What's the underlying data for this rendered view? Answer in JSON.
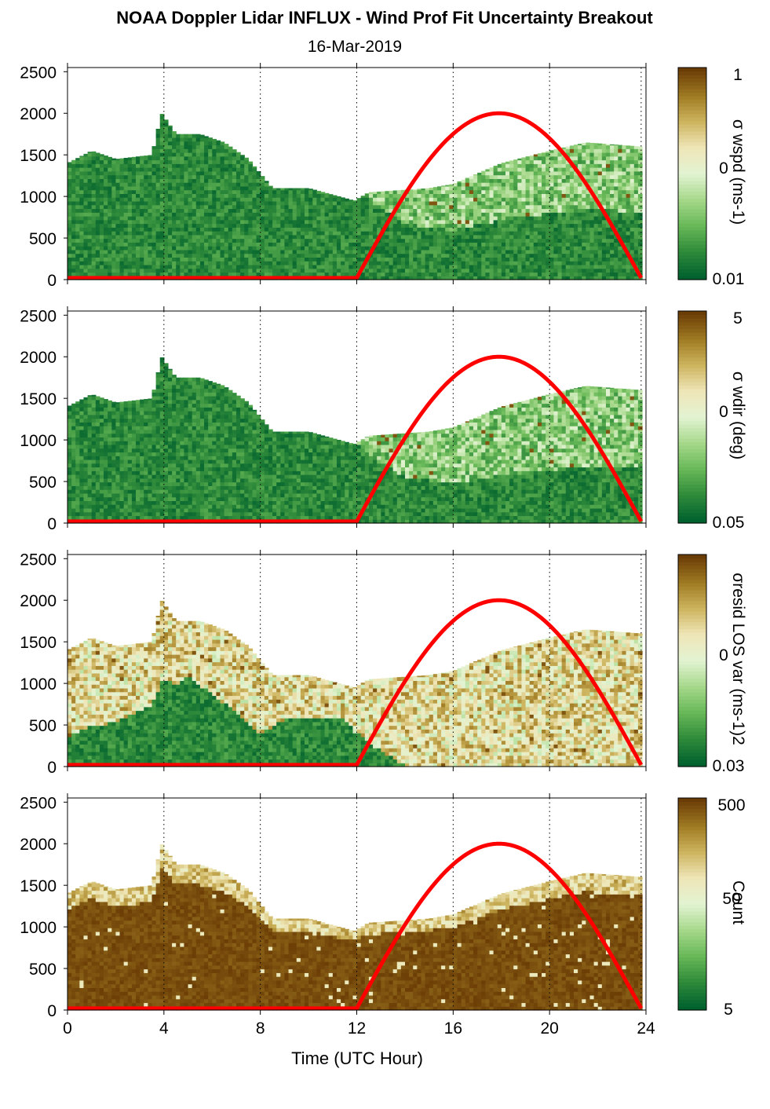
{
  "title": "NOAA Doppler Lidar INFLUX - Wind Prof Fit Uncertainty Breakout",
  "subtitle": "16-Mar-2019",
  "colors": {
    "cmap": [
      "#00602e",
      "#2e8a3a",
      "#67b857",
      "#a6d88a",
      "#e2f3d2",
      "#efe6b8",
      "#cdb45e",
      "#9f7a22",
      "#6b3d06"
    ],
    "sun_curve": "#ff0000",
    "gridline": "#000000"
  },
  "chart_data": [
    {
      "type": "heatmap",
      "panel": "sigma_wspd",
      "xlabel": "",
      "ylabel": "",
      "xlim": [
        0,
        24
      ],
      "ylim": [
        0,
        2550
      ],
      "x_ticks": [
        "0",
        "4",
        "8",
        "12",
        "16",
        "20",
        "24"
      ],
      "y_ticks": [
        "0",
        "500",
        "1000",
        "1500",
        "2000",
        "2500"
      ],
      "colorbar": {
        "label": "σ wspd (ms-1)",
        "ticks": [
          "1",
          "0",
          "0.01"
        ],
        "scale": "log"
      },
      "grid": "vertical dotted at 4-hour intervals",
      "data_top_height_m": [
        [
          0,
          1400
        ],
        [
          1,
          1550
        ],
        [
          2,
          1450
        ],
        [
          3.5,
          1500
        ],
        [
          3.9,
          2000
        ],
        [
          4.5,
          1750
        ],
        [
          5.5,
          1750
        ],
        [
          6.5,
          1650
        ],
        [
          7.5,
          1450
        ],
        [
          8.5,
          1100
        ],
        [
          10,
          1100
        ],
        [
          11.9,
          950
        ],
        [
          12.5,
          1050
        ],
        [
          15,
          1100
        ],
        [
          16,
          1150
        ],
        [
          18,
          1400
        ],
        [
          20,
          1550
        ],
        [
          21.5,
          1650
        ],
        [
          23.8,
          1600
        ]
      ],
      "low_uncertainty_fraction": [
        [
          0,
          1.0
        ],
        [
          11.9,
          1.0
        ],
        [
          12.5,
          0.9
        ],
        [
          14,
          0.6
        ],
        [
          16,
          0.5
        ],
        [
          20,
          0.5
        ],
        [
          23.8,
          0.5
        ]
      ],
      "sun_curve": {
        "label": "",
        "peak_hour": 18,
        "peak_height_m": 2000,
        "sunrise_hour": 12,
        "sunset_hour": 23.8
      }
    },
    {
      "type": "heatmap",
      "panel": "sigma_wdir",
      "xlabel": "",
      "ylabel": "",
      "xlim": [
        0,
        24
      ],
      "ylim": [
        0,
        2550
      ],
      "x_ticks": [
        "0",
        "4",
        "8",
        "12",
        "16",
        "20",
        "24"
      ],
      "y_ticks": [
        "0",
        "500",
        "1000",
        "1500",
        "2000",
        "2500"
      ],
      "colorbar": {
        "label": "σ wdir (deg)",
        "ticks": [
          "5",
          "0",
          "0.05"
        ],
        "scale": "log"
      },
      "grid": "vertical dotted at 4-hour intervals",
      "data_top_height_m": [
        [
          0,
          1400
        ],
        [
          1,
          1550
        ],
        [
          2,
          1450
        ],
        [
          3.5,
          1500
        ],
        [
          3.9,
          2000
        ],
        [
          4.5,
          1750
        ],
        [
          5.5,
          1750
        ],
        [
          6.5,
          1650
        ],
        [
          7.5,
          1450
        ],
        [
          8.5,
          1100
        ],
        [
          10,
          1100
        ],
        [
          11.9,
          950
        ],
        [
          12.5,
          1050
        ],
        [
          15,
          1100
        ],
        [
          16,
          1150
        ],
        [
          18,
          1400
        ],
        [
          20,
          1550
        ],
        [
          21.5,
          1650
        ],
        [
          23.8,
          1600
        ]
      ],
      "low_uncertainty_fraction": [
        [
          0,
          1.0
        ],
        [
          11.9,
          1.0
        ],
        [
          12.5,
          0.75
        ],
        [
          14,
          0.5
        ],
        [
          16,
          0.4
        ],
        [
          20,
          0.4
        ],
        [
          23.8,
          0.4
        ]
      ],
      "sun_curve": {
        "label": "",
        "peak_hour": 18,
        "peak_height_m": 2000,
        "sunrise_hour": 12,
        "sunset_hour": 23.8
      }
    },
    {
      "type": "heatmap",
      "panel": "sigma_resid_los_var",
      "xlabel": "",
      "ylabel": "",
      "xlim": [
        0,
        24
      ],
      "ylim": [
        0,
        2550
      ],
      "x_ticks": [
        "0",
        "4",
        "8",
        "12",
        "16",
        "20",
        "24"
      ],
      "y_ticks": [
        "0",
        "500",
        "1000",
        "1500",
        "2000",
        "2500"
      ],
      "colorbar": {
        "label": "σresid LOS var (ms-1)2",
        "ticks": [
          "",
          "0",
          "0.03"
        ],
        "scale": "log"
      },
      "grid": "vertical dotted at 4-hour intervals",
      "data_top_height_m": [
        [
          0,
          1400
        ],
        [
          1,
          1550
        ],
        [
          2,
          1450
        ],
        [
          3.5,
          1500
        ],
        [
          3.9,
          2000
        ],
        [
          4.5,
          1750
        ],
        [
          5.5,
          1750
        ],
        [
          6.5,
          1650
        ],
        [
          7.5,
          1450
        ],
        [
          8.5,
          1100
        ],
        [
          10,
          1100
        ],
        [
          11.9,
          950
        ],
        [
          12.5,
          1050
        ],
        [
          15,
          1100
        ],
        [
          16,
          1150
        ],
        [
          18,
          1400
        ],
        [
          20,
          1550
        ],
        [
          21.5,
          1650
        ],
        [
          23.8,
          1600
        ]
      ],
      "low_uncertainty_fraction": [
        [
          0,
          0.25
        ],
        [
          2,
          0.35
        ],
        [
          5,
          0.6
        ],
        [
          8,
          0.3
        ],
        [
          9,
          0.5
        ],
        [
          11.5,
          0.55
        ],
        [
          12.5,
          0.25
        ],
        [
          14,
          0.0
        ],
        [
          23.8,
          0.0
        ]
      ],
      "sun_curve": {
        "label": "",
        "peak_hour": 18,
        "peak_height_m": 2000,
        "sunrise_hour": 12,
        "sunset_hour": 23.8
      }
    },
    {
      "type": "heatmap",
      "panel": "count",
      "xlabel": "Time (UTC Hour)",
      "ylabel": "",
      "xlim": [
        0,
        24
      ],
      "ylim": [
        0,
        2550
      ],
      "x_ticks": [
        "0",
        "4",
        "8",
        "12",
        "16",
        "20",
        "24"
      ],
      "y_ticks": [
        "0",
        "500",
        "1000",
        "1500",
        "2000",
        "2500"
      ],
      "colorbar": {
        "label": "Count",
        "ticks": [
          "500",
          "50",
          "5"
        ],
        "scale": "log"
      },
      "grid": "vertical dotted at 4-hour intervals",
      "data_top_height_m": [
        [
          0,
          1400
        ],
        [
          1,
          1550
        ],
        [
          2,
          1450
        ],
        [
          3.5,
          1500
        ],
        [
          3.9,
          2000
        ],
        [
          4.5,
          1750
        ],
        [
          5.5,
          1750
        ],
        [
          6.5,
          1650
        ],
        [
          7.5,
          1450
        ],
        [
          8.5,
          1100
        ],
        [
          10,
          1100
        ],
        [
          11.9,
          950
        ],
        [
          12.5,
          1050
        ],
        [
          15,
          1100
        ],
        [
          16,
          1150
        ],
        [
          18,
          1400
        ],
        [
          20,
          1550
        ],
        [
          21.5,
          1650
        ],
        [
          23.8,
          1600
        ]
      ],
      "high_count_fraction": 0.85,
      "sun_curve": {
        "label": "",
        "peak_hour": 18,
        "peak_height_m": 2000,
        "sunrise_hour": 12,
        "sunset_hour": 23.8
      }
    }
  ]
}
